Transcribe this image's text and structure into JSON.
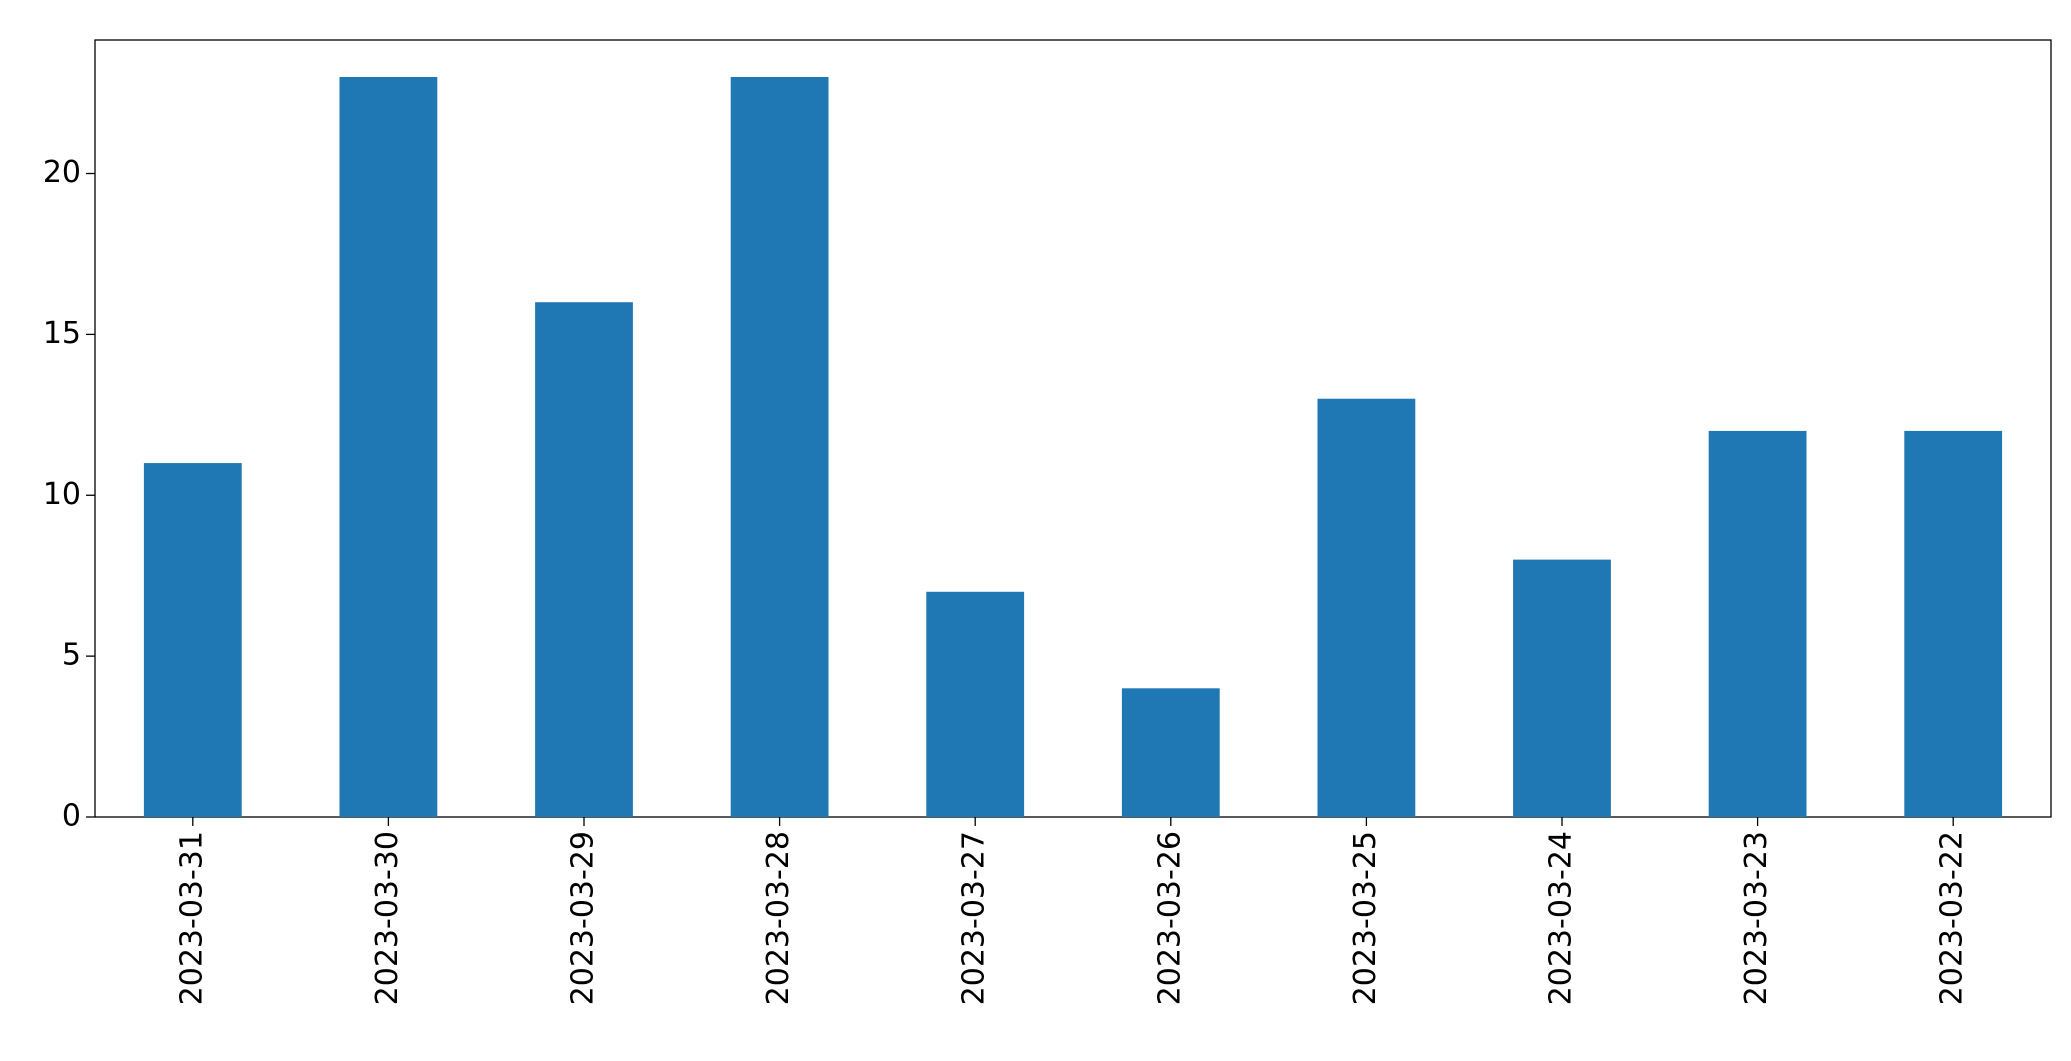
{
  "chart_data": {
    "type": "bar",
    "categories": [
      "2023-03-31",
      "2023-03-30",
      "2023-03-29",
      "2023-03-28",
      "2023-03-27",
      "2023-03-26",
      "2023-03-25",
      "2023-03-24",
      "2023-03-23",
      "2023-03-22"
    ],
    "values": [
      11,
      23,
      16,
      23,
      7,
      4,
      13,
      8,
      12,
      12
    ],
    "color": "#1f77b4",
    "ylim": [
      0,
      24.15
    ],
    "yticks": [
      0,
      5,
      10,
      15,
      20
    ],
    "grid": false
  }
}
